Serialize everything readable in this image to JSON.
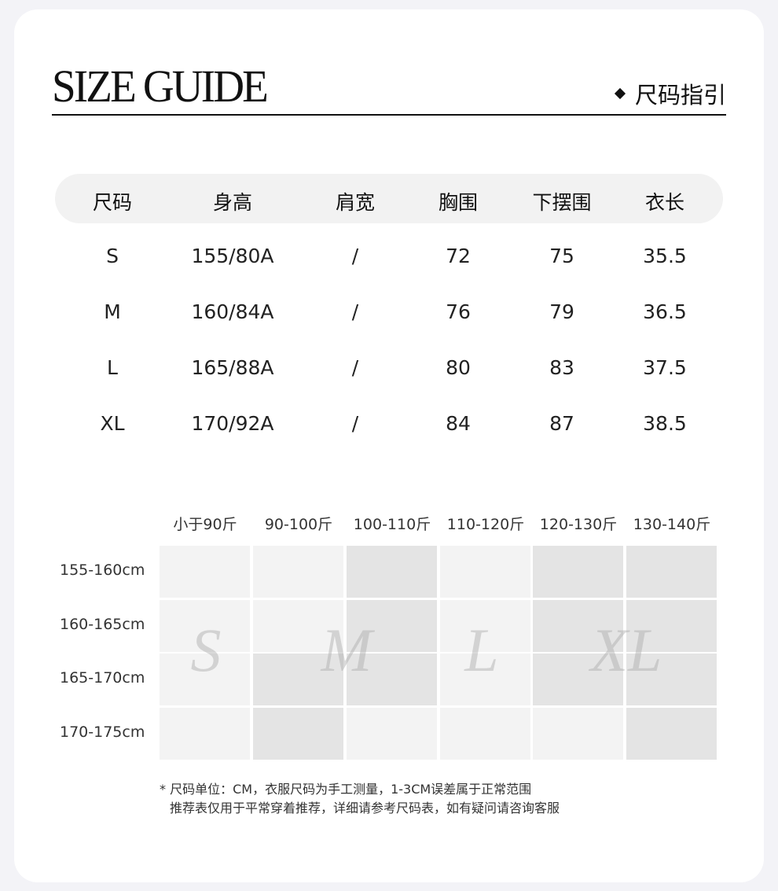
{
  "header": {
    "title": "SIZE GUIDE",
    "subtitle": "尺码指引"
  },
  "size_table": {
    "columns": [
      "尺码",
      "身高",
      "肩宽",
      "胸围",
      "下摆围",
      "衣长"
    ],
    "rows": [
      [
        "S",
        "155/80A",
        "/",
        "72",
        "75",
        "35.5"
      ],
      [
        "M",
        "160/84A",
        "/",
        "76",
        "79",
        "36.5"
      ],
      [
        "L",
        "165/88A",
        "/",
        "80",
        "83",
        "37.5"
      ],
      [
        "XL",
        "170/92A",
        "/",
        "84",
        "87",
        "38.5"
      ]
    ]
  },
  "recommend": {
    "weights": [
      "小于90斤",
      "90-100斤",
      "100-110斤",
      "110-120斤",
      "120-130斤",
      "130-140斤"
    ],
    "heights": [
      "155-160cm",
      "160-165cm",
      "165-170cm",
      "170-175cm"
    ],
    "shading": [
      [
        "light",
        "light",
        "dark",
        "light",
        "dark",
        "dark"
      ],
      [
        "light",
        "light",
        "dark",
        "light",
        "dark",
        "dark"
      ],
      [
        "light",
        "dark",
        "dark",
        "light",
        "dark",
        "dark"
      ],
      [
        "light",
        "dark",
        "light",
        "light",
        "light",
        "dark"
      ]
    ],
    "size_letters": [
      "S",
      "M",
      "L",
      "XL"
    ],
    "colors": {
      "light": "#f3f3f3",
      "dark": "#e4e4e4"
    }
  },
  "notes": [
    "* 尺码单位：CM，衣服尺码为手工测量，1-3CM误差属于正常范围",
    "推荐表仅用于平常穿着推荐，详细请参考尺码表，如有疑问请咨询客服"
  ]
}
